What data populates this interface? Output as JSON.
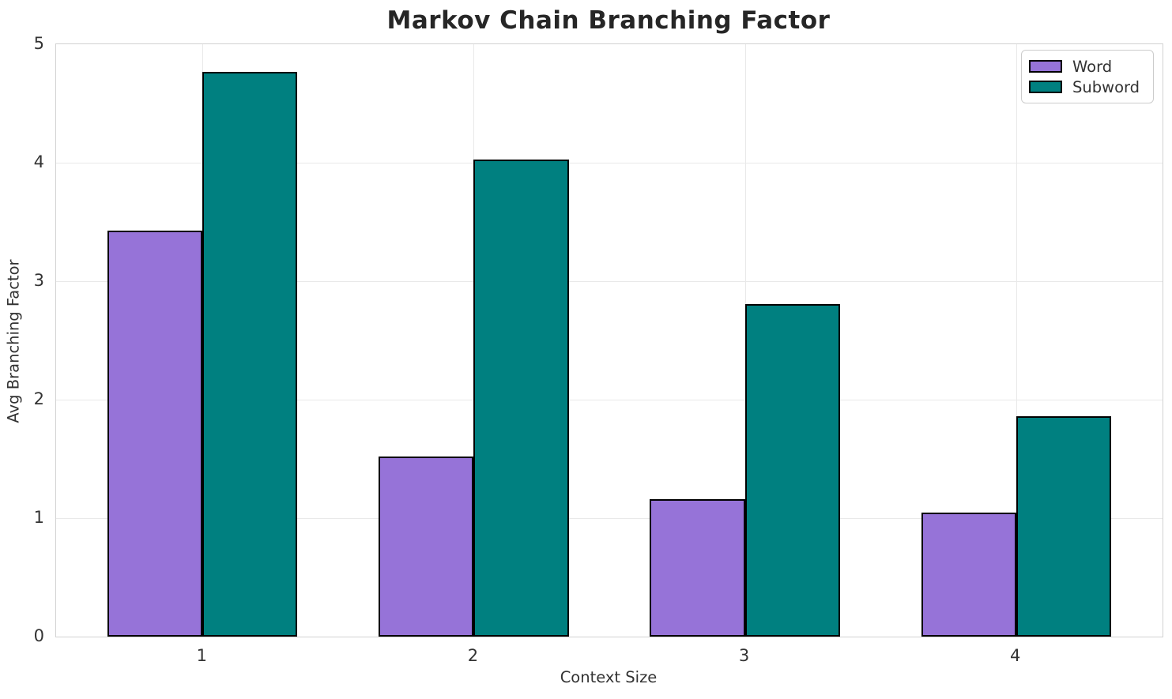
{
  "chart_data": {
    "type": "bar",
    "title": "Markov Chain Branching Factor",
    "xlabel": "Context Size",
    "ylabel": "Avg Branching Factor",
    "categories": [
      "1",
      "2",
      "3",
      "4"
    ],
    "series": [
      {
        "name": "Word",
        "color": "#9673d8",
        "values": [
          3.43,
          1.52,
          1.16,
          1.05
        ]
      },
      {
        "name": "Subword",
        "color": "#008080",
        "values": [
          4.77,
          4.03,
          2.81,
          1.86
        ]
      }
    ],
    "ylim": [
      0,
      5
    ],
    "yticks": [
      0,
      1,
      2,
      3,
      4,
      5
    ],
    "grid": true,
    "legend_position": "upper right",
    "bar_edge_color": "#000000",
    "bar_width_category_units": 0.35
  }
}
